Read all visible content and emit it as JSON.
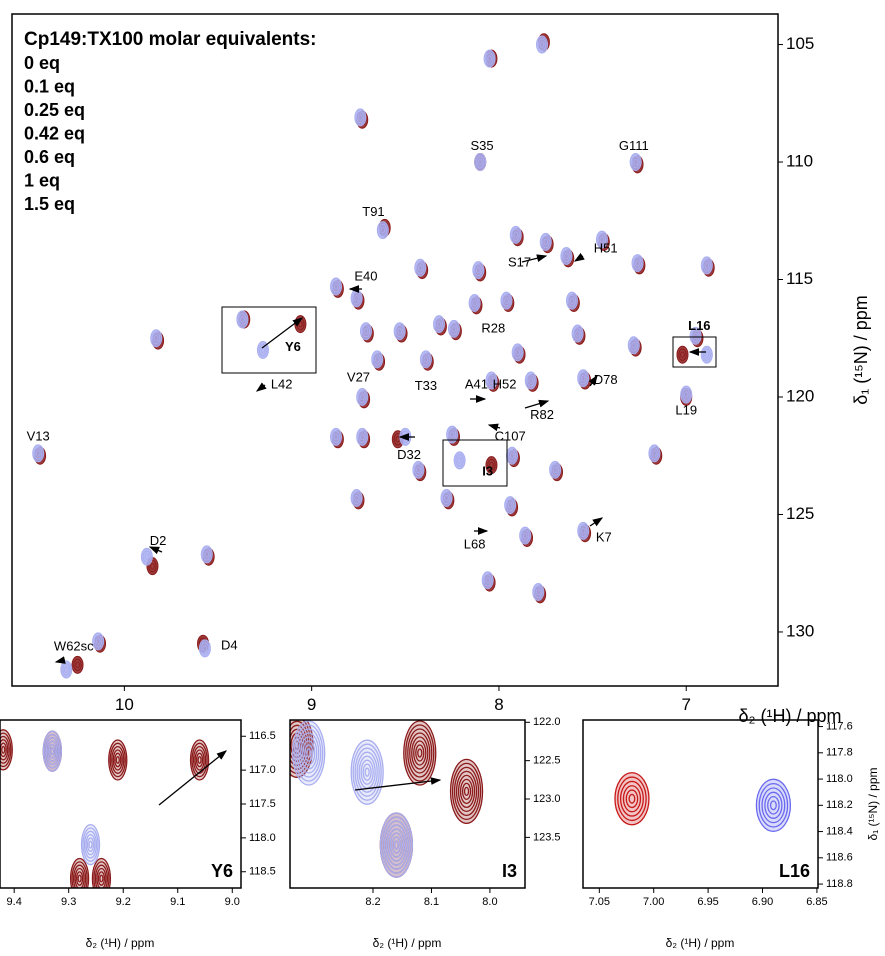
{
  "chart_data": [
    {
      "type": "scatter",
      "title": "Cp149:TX100 molar equivalents:",
      "x_label": "δ₂ (¹H) / ppm",
      "y_label": "δ₁ (¹⁵N) / ppm",
      "xlim": [
        10.6,
        6.51
      ],
      "ylim": [
        103.7,
        132.3
      ],
      "xticks": [
        10,
        9,
        8,
        7
      ],
      "yticks": [
        105,
        110,
        115,
        120,
        125,
        130
      ],
      "series": [
        {
          "name": "1.5 eq",
          "color": "#8b1a1a",
          "x": [
            8.04,
            7.76,
            8.73,
            8.1,
            7.26,
            8.61,
            8.41,
            7.9,
            7.74,
            7.63,
            7.44,
            7.25,
            6.88,
            8.1,
            8.86,
            8.75,
            8.52,
            8.7,
            8.23,
            8.31,
            8.12,
            7.89,
            7.95,
            7.6,
            7.57,
            7.27,
            6.94,
            9.82,
            9.36,
            9.06,
            8.64,
            8.72,
            8.38,
            8.03,
            7.82,
            7.54,
            8.24,
            8.54,
            8.72,
            8.86,
            10.45,
            8.04,
            7.92,
            7.69,
            7.16,
            8.42,
            8.75,
            8.27,
            7.93,
            7.85,
            7.54,
            8.05,
            7.78,
            9.85,
            9.55,
            10.13,
            9.58,
            10.25,
            7.02,
            7.0
          ],
          "y": [
            105.6,
            104.9,
            108.2,
            110.0,
            110.1,
            112.8,
            114.6,
            113.2,
            113.5,
            114.1,
            113.4,
            114.4,
            114.5,
            114.7,
            115.4,
            115.9,
            117.3,
            117.3,
            117.2,
            117.0,
            116.1,
            118.2,
            116.0,
            116.0,
            117.4,
            117.9,
            117.5,
            117.6,
            116.7,
            116.9,
            118.5,
            120.1,
            118.5,
            119.4,
            119.4,
            119.3,
            121.7,
            121.8,
            121.8,
            121.8,
            122.5,
            122.9,
            122.6,
            123.2,
            122.5,
            123.2,
            124.4,
            124.4,
            124.7,
            126.0,
            125.8,
            127.9,
            128.4,
            127.2,
            126.8,
            130.5,
            130.5,
            131.4,
            118.2,
            120.0
          ]
        },
        {
          "name": "1 eq",
          "color": "#e01818"
        },
        {
          "name": "0.6 eq",
          "color": "#d62590"
        },
        {
          "name": "0.42 eq",
          "color": "#7b1f8e"
        },
        {
          "name": "0.25 eq",
          "color": "#3c1cb4"
        },
        {
          "name": "0.1 eq",
          "color": "#4a4af0"
        },
        {
          "name": "0 eq",
          "color": "#a9aef0",
          "x": [
            8.05,
            7.77,
            8.74,
            8.1,
            7.27,
            8.62,
            8.42,
            7.91,
            7.75,
            7.64,
            7.45,
            7.26,
            6.89,
            8.11,
            8.87,
            8.76,
            8.53,
            8.71,
            8.24,
            8.32,
            8.13,
            7.9,
            7.96,
            7.61,
            7.58,
            7.28,
            6.95,
            9.83,
            9.37,
            9.26,
            8.65,
            8.73,
            8.39,
            8.04,
            7.83,
            7.55,
            8.25,
            8.5,
            8.73,
            8.87,
            10.46,
            8.21,
            7.93,
            7.7,
            7.17,
            8.43,
            8.76,
            8.28,
            7.94,
            7.86,
            7.55,
            8.06,
            7.79,
            9.88,
            9.56,
            10.14,
            9.57,
            10.31,
            6.89,
            7.0
          ],
          "y": [
            105.6,
            105.0,
            108.1,
            110.0,
            110.0,
            112.9,
            114.5,
            113.1,
            113.4,
            114.0,
            113.3,
            114.3,
            114.4,
            114.6,
            115.3,
            115.8,
            117.2,
            117.2,
            117.1,
            116.9,
            116.0,
            118.1,
            115.9,
            115.9,
            117.3,
            117.8,
            117.4,
            117.5,
            116.7,
            118.0,
            118.4,
            120.0,
            118.4,
            119.3,
            119.3,
            119.2,
            121.6,
            121.7,
            121.7,
            121.7,
            122.4,
            122.7,
            122.5,
            123.1,
            122.4,
            123.1,
            124.3,
            124.3,
            124.6,
            125.9,
            125.7,
            127.8,
            128.3,
            126.8,
            126.7,
            130.4,
            130.7,
            131.6,
            118.2,
            119.9
          ]
        }
      ],
      "annotations": [
        {
          "text": "S35",
          "x": 8.09,
          "y": 109.35
        },
        {
          "text": "G111",
          "x": 7.28,
          "y": 109.35
        },
        {
          "text": "T91",
          "x": 8.67,
          "y": 112.15
        },
        {
          "text": "H51",
          "x": 7.43,
          "y": 113.7
        },
        {
          "text": "S17",
          "x": 7.89,
          "y": 114.3
        },
        {
          "text": "E40",
          "x": 8.71,
          "y": 114.9
        },
        {
          "text": "L16",
          "x": 6.93,
          "y": 117.0,
          "bold": true
        },
        {
          "text": "Y6",
          "x": 9.1,
          "y": 117.9,
          "bold": true
        },
        {
          "text": "R28",
          "x": 8.03,
          "y": 117.1
        },
        {
          "text": "L42",
          "x": 9.16,
          "y": 119.5
        },
        {
          "text": "V27",
          "x": 8.75,
          "y": 119.2
        },
        {
          "text": "T33",
          "x": 8.39,
          "y": 119.55
        },
        {
          "text": "A41",
          "x": 8.12,
          "y": 119.5
        },
        {
          "text": "H52",
          "x": 7.97,
          "y": 119.5
        },
        {
          "text": "D78",
          "x": 7.43,
          "y": 119.3
        },
        {
          "text": "R82",
          "x": 7.77,
          "y": 120.8
        },
        {
          "text": "L19",
          "x": 7.0,
          "y": 120.6
        },
        {
          "text": "C107",
          "x": 7.94,
          "y": 121.7
        },
        {
          "text": "V13",
          "x": 10.46,
          "y": 121.7
        },
        {
          "text": "D32",
          "x": 8.48,
          "y": 122.5
        },
        {
          "text": "I3",
          "x": 8.06,
          "y": 123.2,
          "bold": true
        },
        {
          "text": "L68",
          "x": 8.13,
          "y": 126.3
        },
        {
          "text": "K7",
          "x": 7.44,
          "y": 126.0
        },
        {
          "text": "D2",
          "x": 9.82,
          "y": 126.15
        },
        {
          "text": "D4",
          "x": 9.44,
          "y": 130.6
        },
        {
          "text": "W62sc",
          "x": 10.27,
          "y": 130.65
        }
      ]
    },
    {
      "type": "scatter",
      "label": "Y6",
      "x_label": "δ₂ (¹H) / ppm",
      "xlim": [
        9.426,
        8.984
      ],
      "ylim": [
        116.26,
        118.74
      ],
      "xticks": [
        9.4,
        9.3,
        9.2,
        9.1,
        {
          "value": 9,
          "label": "9.0"
        }
      ],
      "yticks": [
        116.5,
        {
          "value": 117,
          "label": "117.0"
        },
        117.5,
        {
          "value": 118,
          "label": "118.0"
        },
        118.5
      ],
      "series": [
        {
          "color": "#8b1a1a",
          "x": [
            9.42,
            9.33,
            9.21,
            9.06,
            9.28,
            9.24
          ],
          "y": [
            116.7,
            116.72,
            116.85,
            116.85,
            118.6,
            118.6
          ]
        },
        {
          "color": "#a9aef0",
          "x": [
            9.33,
            9.26
          ],
          "y": [
            116.72,
            118.1
          ]
        }
      ]
    },
    {
      "type": "scatter",
      "label": "I3",
      "x_label": "δ₂ (¹H) / ppm",
      "xlim": [
        8.342,
        7.94
      ],
      "ylim": [
        121.97,
        124.16
      ],
      "xticks": [
        8.2,
        8.1,
        {
          "value": 8,
          "label": "8.0"
        }
      ],
      "yticks": [
        {
          "value": 122,
          "label": "122.0"
        },
        122.5,
        {
          "value": 123,
          "label": "123.0"
        },
        123.5
      ],
      "series": [
        {
          "color": "#8b1a1a",
          "x": [
            8.04,
            8.16,
            8.33,
            8.12
          ],
          "y": [
            122.9,
            123.6,
            122.3,
            122.4
          ]
        },
        {
          "color": "#a9aef0",
          "x": [
            8.21,
            8.16,
            8.31
          ],
          "y": [
            122.65,
            123.6,
            122.4
          ]
        }
      ]
    },
    {
      "type": "scatter",
      "label": "L16",
      "x_label": "δ₂ (¹H) / ppm",
      "y_label": "δ₁ (¹⁵N) / ppm",
      "xlim": [
        7.065,
        6.849
      ],
      "ylim": [
        117.55,
        118.83
      ],
      "xticks": [
        7.05,
        {
          "value": 7,
          "label": "7.00"
        },
        6.95,
        {
          "value": 6.9,
          "label": "6.90"
        },
        6.85
      ],
      "yticks": [
        117.6,
        117.8,
        {
          "value": 118,
          "label": "118.0"
        },
        118.2,
        118.4,
        118.6,
        118.8
      ],
      "series": [
        {
          "color": "#c81818",
          "x": [
            7.02
          ],
          "y": [
            118.15
          ]
        },
        {
          "color": "#6a6af0",
          "x": [
            6.89
          ],
          "y": [
            118.2
          ]
        }
      ]
    }
  ]
}
